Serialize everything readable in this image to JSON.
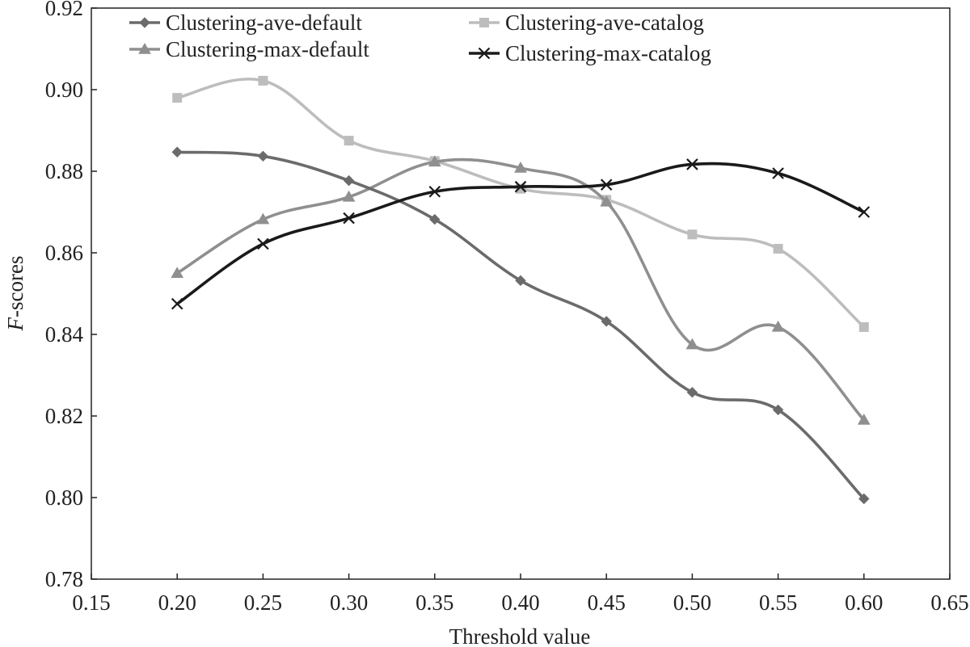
{
  "chart_data": {
    "type": "line",
    "title": "",
    "xlabel": "Threshold value",
    "ylabel_italic": "F",
    "ylabel_rest": "-scores",
    "xlim": [
      0.15,
      0.65
    ],
    "ylim": [
      0.78,
      0.92
    ],
    "xticks": [
      "0.15",
      "0.20",
      "0.25",
      "0.30",
      "0.35",
      "0.40",
      "0.45",
      "0.50",
      "0.55",
      "0.60",
      "0.65"
    ],
    "yticks": [
      "0.78",
      "0.80",
      "0.82",
      "0.84",
      "0.86",
      "0.88",
      "0.90",
      "0.92"
    ],
    "grid": false,
    "legend_position": "top",
    "x": [
      0.2,
      0.25,
      0.3,
      0.35,
      0.4,
      0.45,
      0.5,
      0.55,
      0.6
    ],
    "series": [
      {
        "name": "Clustering-ave-default",
        "marker": "diamond",
        "color": "#6b6b6b",
        "values": [
          0.8847,
          0.8837,
          0.8777,
          0.8682,
          0.8532,
          0.8432,
          0.8258,
          0.8215,
          0.7997
        ]
      },
      {
        "name": "Clustering-max-default",
        "marker": "triangle",
        "color": "#8f8f8f",
        "values": [
          0.855,
          0.8682,
          0.8737,
          0.8823,
          0.8808,
          0.8725,
          0.8375,
          0.8418,
          0.819
        ]
      },
      {
        "name": "Clustering-ave-catalog",
        "marker": "square",
        "color": "#bdbdbd",
        "values": [
          0.898,
          0.9022,
          0.8875,
          0.8825,
          0.8757,
          0.873,
          0.8645,
          0.861,
          0.8418
        ]
      },
      {
        "name": "Clustering-max-catalog",
        "marker": "x",
        "color": "#1a1a1a",
        "values": [
          0.8475,
          0.8622,
          0.8685,
          0.875,
          0.8762,
          0.8767,
          0.8817,
          0.8795,
          0.87
        ]
      }
    ]
  }
}
